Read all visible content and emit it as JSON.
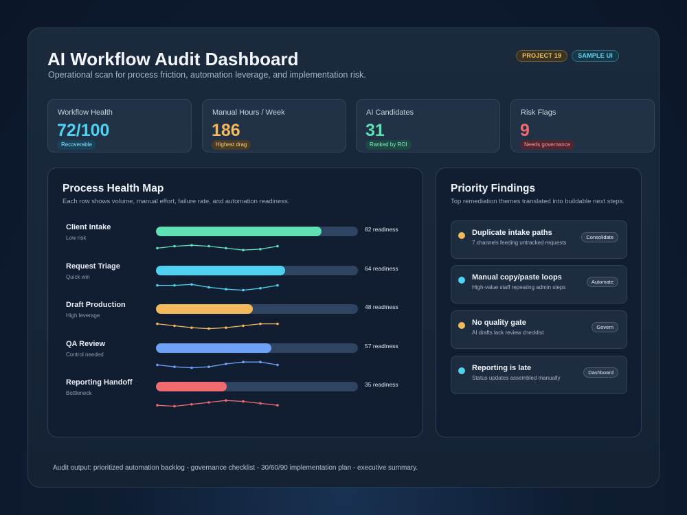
{
  "header": {
    "title": "AI Workflow Audit Dashboard",
    "subtitle": "Operational scan for process friction, automation leverage, and implementation risk.",
    "badges": [
      "PROJECT 19",
      "SAMPLE UI"
    ]
  },
  "kpis": [
    {
      "label": "Workflow Health",
      "value": "72/100",
      "chip": "Recoverable",
      "color": "#4fd2f2"
    },
    {
      "label": "Manual Hours / Week",
      "value": "186",
      "chip": "Highest drag",
      "color": "#f4b95c"
    },
    {
      "label": "AI Candidates",
      "value": "31",
      "chip": "Ranked by ROI",
      "color": "#5fe0b5"
    },
    {
      "label": "Risk Flags",
      "value": "9",
      "chip": "Needs governance",
      "color": "#f06b70"
    }
  ],
  "process_map": {
    "title": "Process Health Map",
    "subtitle": "Each row shows volume, manual effort, failure rate, and automation readiness.",
    "rows": [
      {
        "name": "Client Intake",
        "note": "Low risk",
        "readiness": 82,
        "readiness_label": "82 readiness",
        "color": "#5fe0b5",
        "spark": [
          6,
          4,
          3,
          4,
          6,
          8,
          7,
          4
        ]
      },
      {
        "name": "Request Triage",
        "note": "Quick win",
        "readiness": 64,
        "readiness_label": "64 readiness",
        "color": "#4fd2f2",
        "spark": [
          4,
          4,
          3,
          6,
          8,
          9,
          7,
          4
        ]
      },
      {
        "name": "Draft Production",
        "note": "High leverage",
        "readiness": 48,
        "readiness_label": "48 readiness",
        "color": "#f4b95c",
        "spark": [
          4,
          6,
          8,
          9,
          8,
          6,
          4,
          4
        ]
      },
      {
        "name": "QA Review",
        "note": "Control needed",
        "readiness": 57,
        "readiness_label": "57 readiness",
        "color": "#6ea2f6",
        "spark": [
          6,
          8,
          9,
          8,
          5,
          3,
          3,
          6
        ]
      },
      {
        "name": "Reporting Handoff",
        "note": "Bottleneck",
        "readiness": 35,
        "readiness_label": "35 readiness",
        "color": "#f06b70",
        "spark": [
          8,
          9,
          7,
          5,
          3,
          4,
          6,
          8
        ]
      }
    ]
  },
  "findings": {
    "title": "Priority Findings",
    "subtitle": "Top remediation themes translated into buildable next steps.",
    "items": [
      {
        "title": "Duplicate intake paths",
        "desc": "7 channels feeding untracked requests",
        "action": "Consolidate",
        "color": "#f4b95c"
      },
      {
        "title": "Manual copy/paste loops",
        "desc": "High-value staff repeating admin steps",
        "action": "Automate",
        "color": "#4fd2f2"
      },
      {
        "title": "No quality gate",
        "desc": "AI drafts lack review checklist",
        "action": "Govern",
        "color": "#f4b95c"
      },
      {
        "title": "Reporting is late",
        "desc": "Status updates assembled manually",
        "action": "Dashboard",
        "color": "#4fd2f2"
      }
    ]
  },
  "footer": "Audit output: prioritized automation backlog - governance checklist - 30/60/90 implementation plan - executive summary."
}
